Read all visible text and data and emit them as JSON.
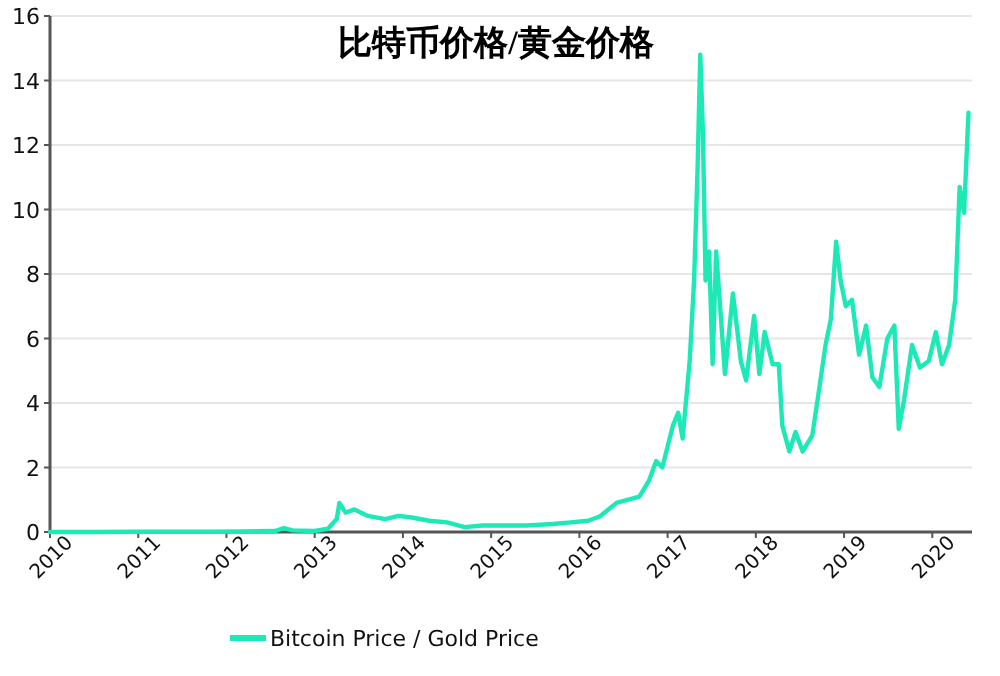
{
  "chart_data": {
    "type": "line",
    "title": "比特币价格/黄金价格",
    "x": [
      2010,
      2010.5,
      2011,
      2011.4,
      2011.8,
      2012.2,
      2012.55,
      2012.65,
      2012.75,
      2013.0,
      2013.15,
      2013.25,
      2013.28,
      2013.35,
      2013.45,
      2013.6,
      2013.8,
      2013.95,
      2014.1,
      2014.3,
      2014.5,
      2014.7,
      2014.9,
      2015.1,
      2015.4,
      2015.7,
      2015.9,
      2016.1,
      2016.23,
      2016.42,
      2016.68,
      2016.79,
      2016.87,
      2016.94,
      2017.06,
      2017.12,
      2017.17,
      2017.25,
      2017.3,
      2017.34,
      2017.37,
      2017.4,
      2017.43,
      2017.47,
      2017.51,
      2017.55,
      2017.6,
      2017.65,
      2017.74,
      2017.83,
      2017.89,
      2017.98,
      2018.04,
      2018.1,
      2018.19,
      2018.26,
      2018.3,
      2018.38,
      2018.45,
      2018.53,
      2018.64,
      2018.7,
      2018.79,
      2018.85,
      2018.91,
      2018.96,
      2019.02,
      2019.09,
      2019.17,
      2019.25,
      2019.32,
      2019.4,
      2019.49,
      2019.57,
      2019.62,
      2019.68,
      2019.77,
      2019.86,
      2019.96,
      2020.04,
      2020.11,
      2020.19,
      2020.26,
      2020.31,
      2020.36,
      2020.41
    ],
    "series": [
      {
        "name": "Bitcoin Price / Gold Price",
        "color": "#1de9b6",
        "values": [
          0,
          0,
          0.01,
          0.01,
          0.01,
          0.02,
          0.03,
          0.12,
          0.05,
          0.03,
          0.1,
          0.4,
          0.9,
          0.6,
          0.7,
          0.5,
          0.4,
          0.5,
          0.45,
          0.35,
          0.3,
          0.15,
          0.2,
          0.2,
          0.2,
          0.25,
          0.3,
          0.35,
          0.48,
          0.9,
          1.1,
          1.6,
          2.2,
          2.0,
          3.3,
          3.7,
          2.9,
          5.3,
          7.8,
          11.3,
          14.8,
          12.4,
          7.8,
          8.7,
          5.2,
          8.7,
          6.8,
          4.9,
          7.4,
          5.3,
          4.7,
          6.7,
          4.9,
          6.2,
          5.2,
          5.2,
          3.3,
          2.5,
          3.1,
          2.5,
          3.0,
          4.1,
          5.8,
          6.6,
          9.0,
          7.8,
          7.0,
          7.2,
          5.5,
          6.4,
          4.8,
          4.5,
          6.0,
          6.4,
          3.2,
          4.1,
          5.8,
          5.1,
          5.3,
          6.2,
          5.2,
          5.8,
          7.2,
          10.7,
          9.9,
          13.0
        ]
      }
    ],
    "xlim": [
      2010,
      2020.45
    ],
    "xticks": [
      2010,
      2011,
      2012,
      2013,
      2014,
      2015,
      2016,
      2017,
      2018,
      2019,
      2020
    ],
    "ylim": [
      0,
      16
    ],
    "yticks": [
      0,
      2,
      4,
      6,
      8,
      10,
      12,
      14,
      16
    ],
    "grid": "y",
    "legend": "bottom",
    "marker": "none",
    "line_style": "solid"
  }
}
